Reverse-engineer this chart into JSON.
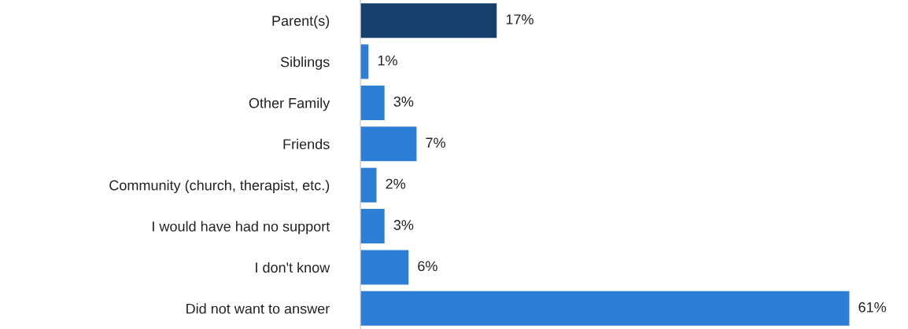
{
  "chart_data": {
    "type": "bar",
    "orientation": "horizontal",
    "categories": [
      "Parent(s)",
      "Siblings",
      "Other Family",
      "Friends",
      "Community (church, therapist, etc.)",
      "I would have had no support",
      "I don't know",
      "Did not want to answer"
    ],
    "values": [
      17,
      1,
      3,
      7,
      2,
      3,
      6,
      61
    ],
    "colors": [
      "#173f6b",
      "#2d7fd6",
      "#2d7fd6",
      "#2d7fd6",
      "#2d7fd6",
      "#2d7fd6",
      "#2d7fd6",
      "#2d7fd6"
    ],
    "value_labels": [
      "17%",
      "1%",
      "3%",
      "7%",
      "2%",
      "3%",
      "6%",
      "61%"
    ],
    "grid": false
  }
}
